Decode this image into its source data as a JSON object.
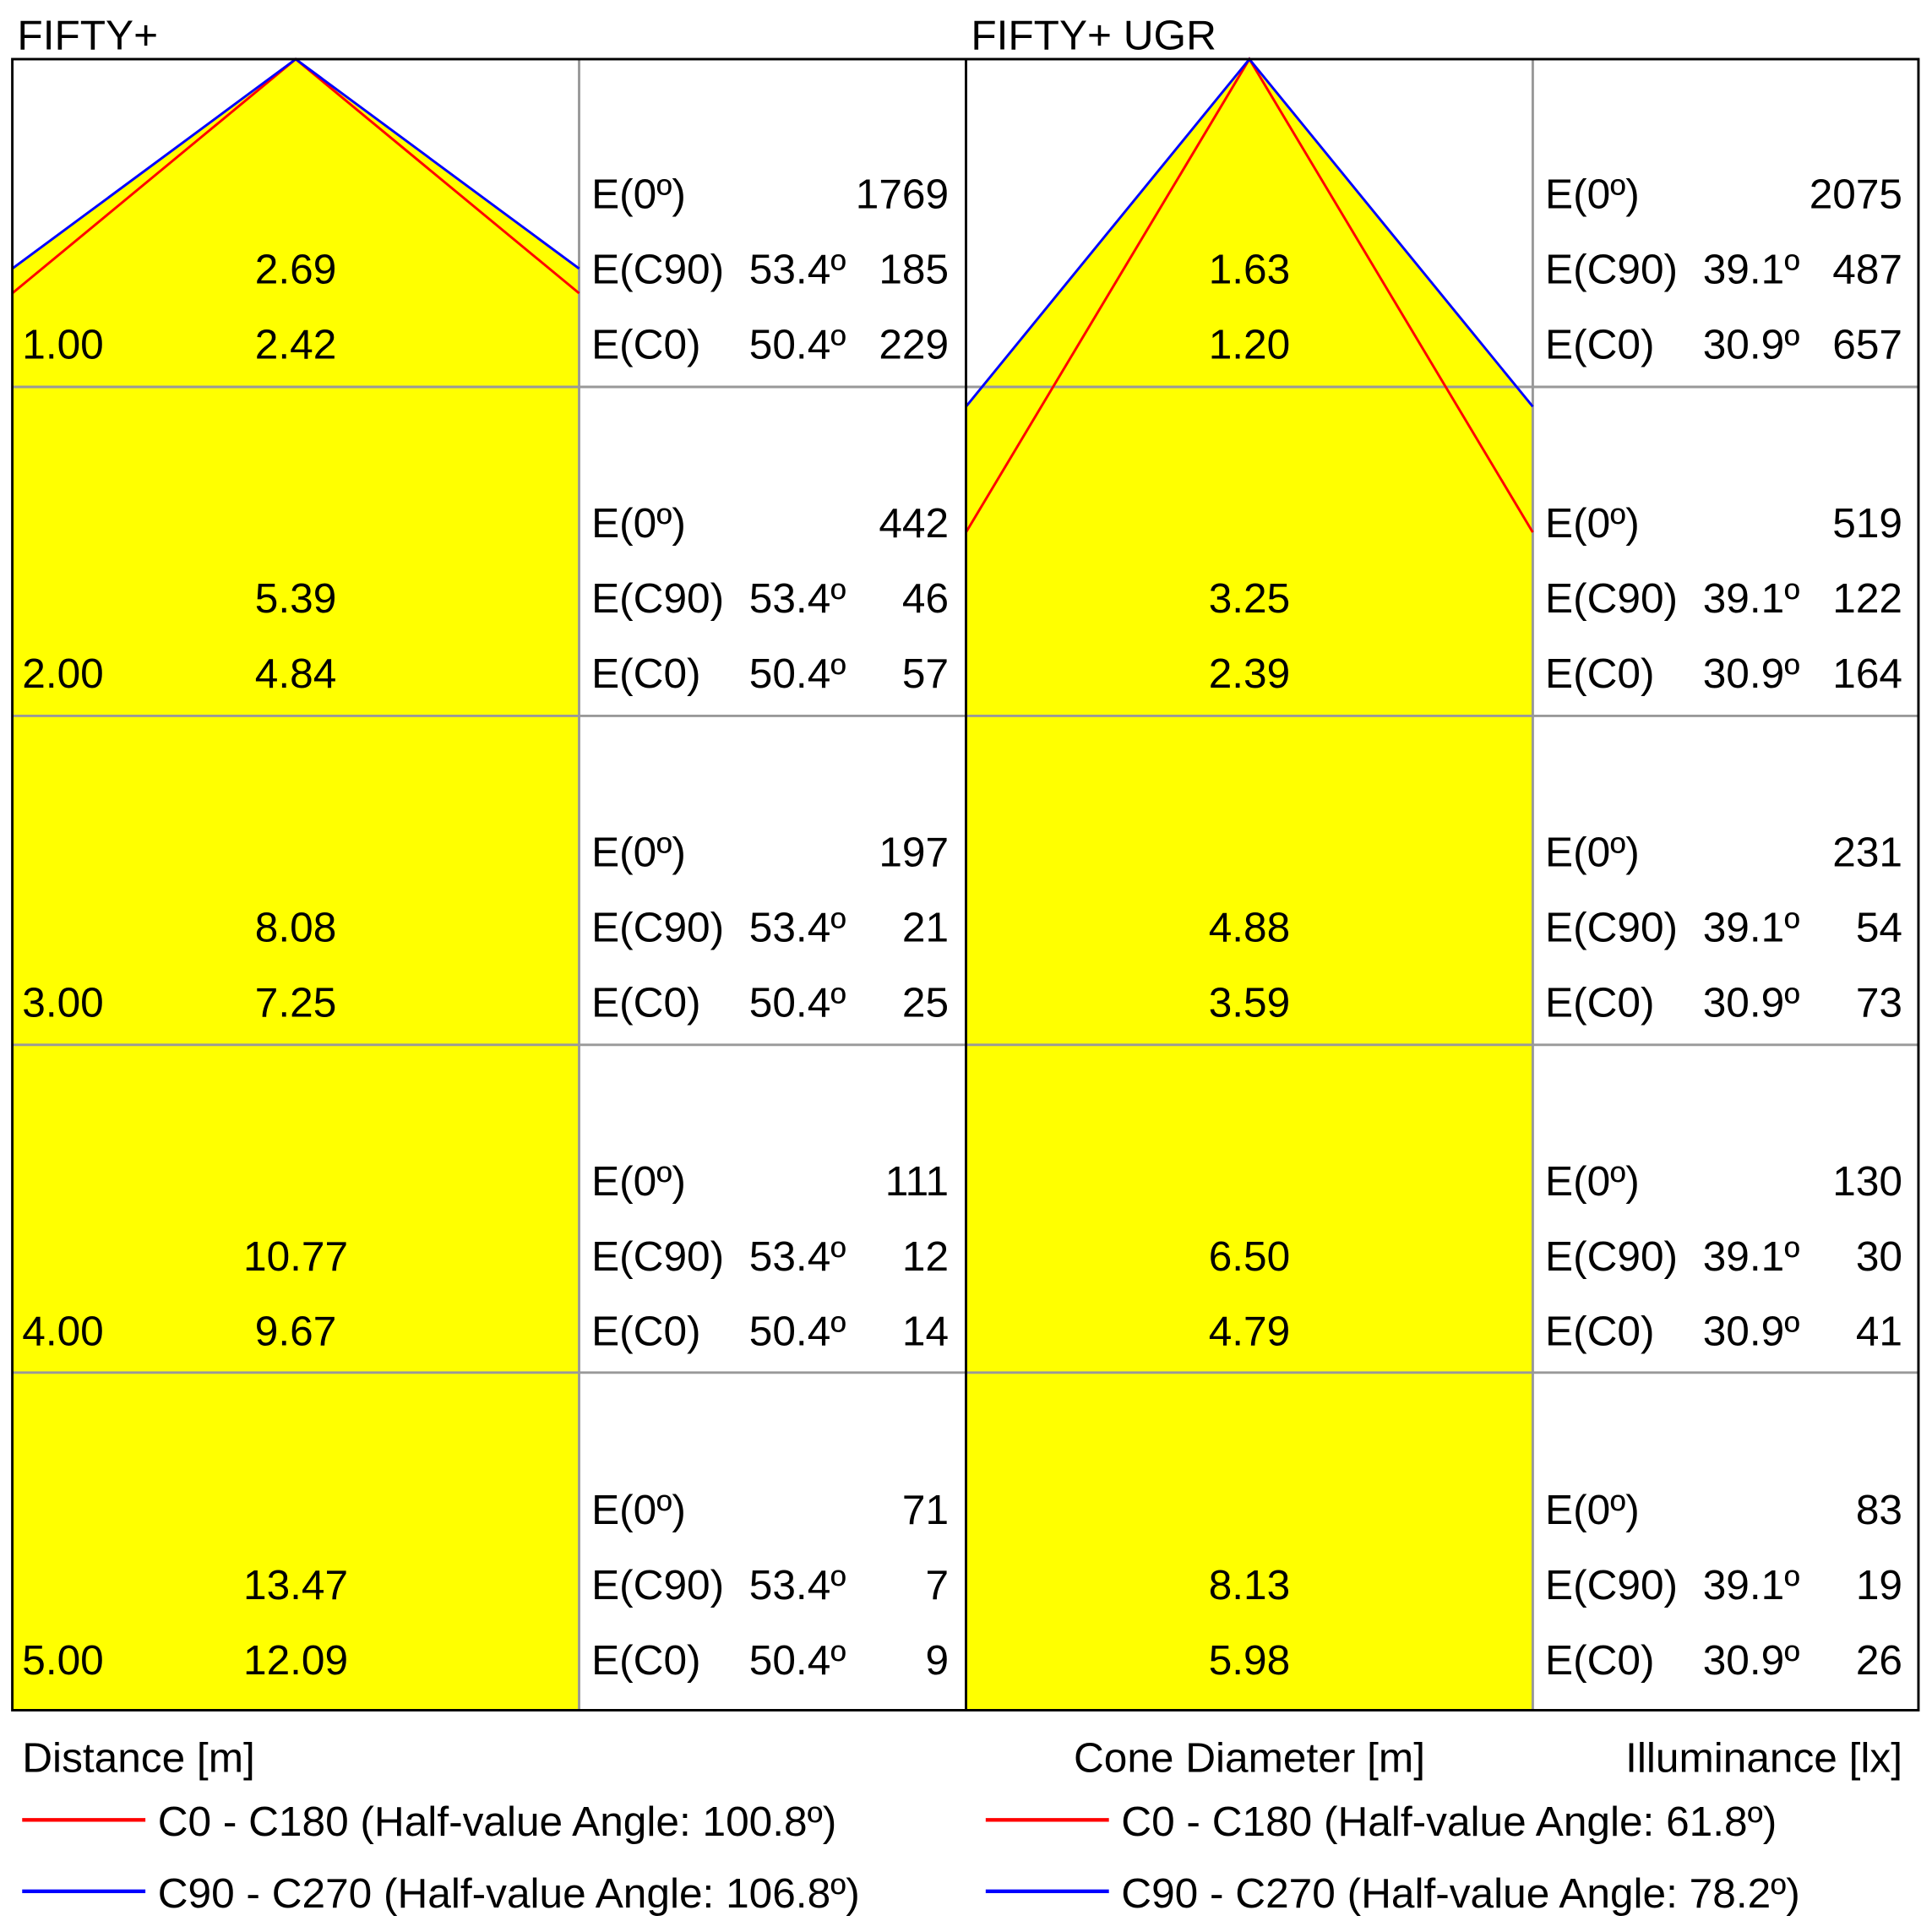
{
  "panels": [
    {
      "title": "FIFTY+",
      "rows": [
        {
          "distance": "1.00",
          "diameter_c90": "2.69",
          "diameter_c0": "2.42",
          "e0": {
            "label": "E(0º)",
            "value": "1769"
          },
          "ec90": {
            "label": "E(C90)",
            "angle": "53.4º",
            "value": "185"
          },
          "ec0": {
            "label": "E(C0)",
            "angle": "50.4º",
            "value": "229"
          }
        },
        {
          "distance": "2.00",
          "diameter_c90": "5.39",
          "diameter_c0": "4.84",
          "e0": {
            "label": "E(0º)",
            "value": "442"
          },
          "ec90": {
            "label": "E(C90)",
            "angle": "53.4º",
            "value": "46"
          },
          "ec0": {
            "label": "E(C0)",
            "angle": "50.4º",
            "value": "57"
          }
        },
        {
          "distance": "3.00",
          "diameter_c90": "8.08",
          "diameter_c0": "7.25",
          "e0": {
            "label": "E(0º)",
            "value": "197"
          },
          "ec90": {
            "label": "E(C90)",
            "angle": "53.4º",
            "value": "21"
          },
          "ec0": {
            "label": "E(C0)",
            "angle": "50.4º",
            "value": "25"
          }
        },
        {
          "distance": "4.00",
          "diameter_c90": "10.77",
          "diameter_c0": "9.67",
          "e0": {
            "label": "E(0º)",
            "value": "111"
          },
          "ec90": {
            "label": "E(C90)",
            "angle": "53.4º",
            "value": "12"
          },
          "ec0": {
            "label": "E(C0)",
            "angle": "50.4º",
            "value": "14"
          }
        },
        {
          "distance": "5.00",
          "diameter_c90": "13.47",
          "diameter_c0": "12.09",
          "e0": {
            "label": "E(0º)",
            "value": "71"
          },
          "ec90": {
            "label": "E(C90)",
            "angle": "53.4º",
            "value": "7"
          },
          "ec0": {
            "label": "E(C0)",
            "angle": "50.4º",
            "value": "9"
          }
        }
      ],
      "legend": [
        "C0 - C180 (Half-value Angle: 100.8º)",
        "C90 - C270 (Half-value Angle: 106.8º)"
      ]
    },
    {
      "title": "FIFTY+ UGR",
      "rows": [
        {
          "diameter_c90": "1.63",
          "diameter_c0": "1.20",
          "e0": {
            "label": "E(0º)",
            "value": "2075"
          },
          "ec90": {
            "label": "E(C90)",
            "angle": "39.1º",
            "value": "487"
          },
          "ec0": {
            "label": "E(C0)",
            "angle": "30.9º",
            "value": "657"
          }
        },
        {
          "diameter_c90": "3.25",
          "diameter_c0": "2.39",
          "e0": {
            "label": "E(0º)",
            "value": "519"
          },
          "ec90": {
            "label": "E(C90)",
            "angle": "39.1º",
            "value": "122"
          },
          "ec0": {
            "label": "E(C0)",
            "angle": "30.9º",
            "value": "164"
          }
        },
        {
          "diameter_c90": "4.88",
          "diameter_c0": "3.59",
          "e0": {
            "label": "E(0º)",
            "value": "231"
          },
          "ec90": {
            "label": "E(C90)",
            "angle": "39.1º",
            "value": "54"
          },
          "ec0": {
            "label": "E(C0)",
            "angle": "30.9º",
            "value": "73"
          }
        },
        {
          "diameter_c90": "6.50",
          "diameter_c0": "4.79",
          "e0": {
            "label": "E(0º)",
            "value": "130"
          },
          "ec90": {
            "label": "E(C90)",
            "angle": "39.1º",
            "value": "30"
          },
          "ec0": {
            "label": "E(C0)",
            "angle": "30.9º",
            "value": "41"
          }
        },
        {
          "diameter_c90": "8.13",
          "diameter_c0": "5.98",
          "e0": {
            "label": "E(0º)",
            "value": "83"
          },
          "ec90": {
            "label": "E(C90)",
            "angle": "39.1º",
            "value": "19"
          },
          "ec0": {
            "label": "E(C0)",
            "angle": "30.9º",
            "value": "26"
          }
        }
      ],
      "legend": [
        "C0 - C180 (Half-value Angle: 61.8º)",
        "C90 - C270 (Half-value Angle: 78.2º)"
      ]
    }
  ],
  "footer": {
    "distance": "Distance [m]",
    "diameter": "Cone Diameter [m]",
    "illuminance": "Illuminance [lx]"
  }
}
